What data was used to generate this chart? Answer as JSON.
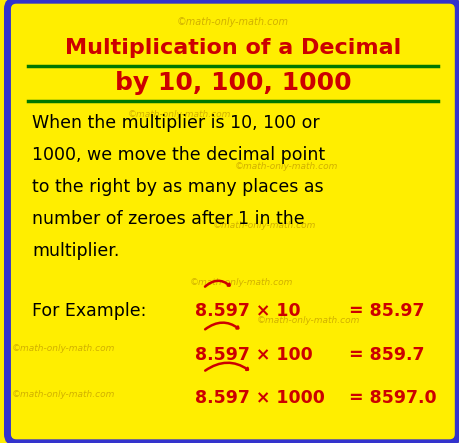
{
  "title_line1": "Multiplication of a Decimal",
  "title_line2": "by 10, 100, 1000",
  "title_color": "#cc0000",
  "bg_color": "#ffee00",
  "border_color": "#3333cc",
  "watermark": "©math-only-math.com",
  "watermark_color": "#ccaa00",
  "body_lines": [
    "When the multiplier is 10, 100 or",
    "1000, we move the decimal point",
    "to the right by as many places as",
    "number of zeroes after 1 in the",
    "multiplier."
  ],
  "body_color": "#000000",
  "example_label": "For Example:",
  "example_color": "#000000",
  "row1_eq": "8.597 × 10",
  "row1_result": "= 85.97",
  "row2_eq": "8.597 × 100",
  "row2_result": "= 859.7",
  "row3_eq": "8.597 × 1000",
  "row3_result": "= 8597.0",
  "arrow_color": "#cc0000",
  "sep_line_color": "#007700"
}
